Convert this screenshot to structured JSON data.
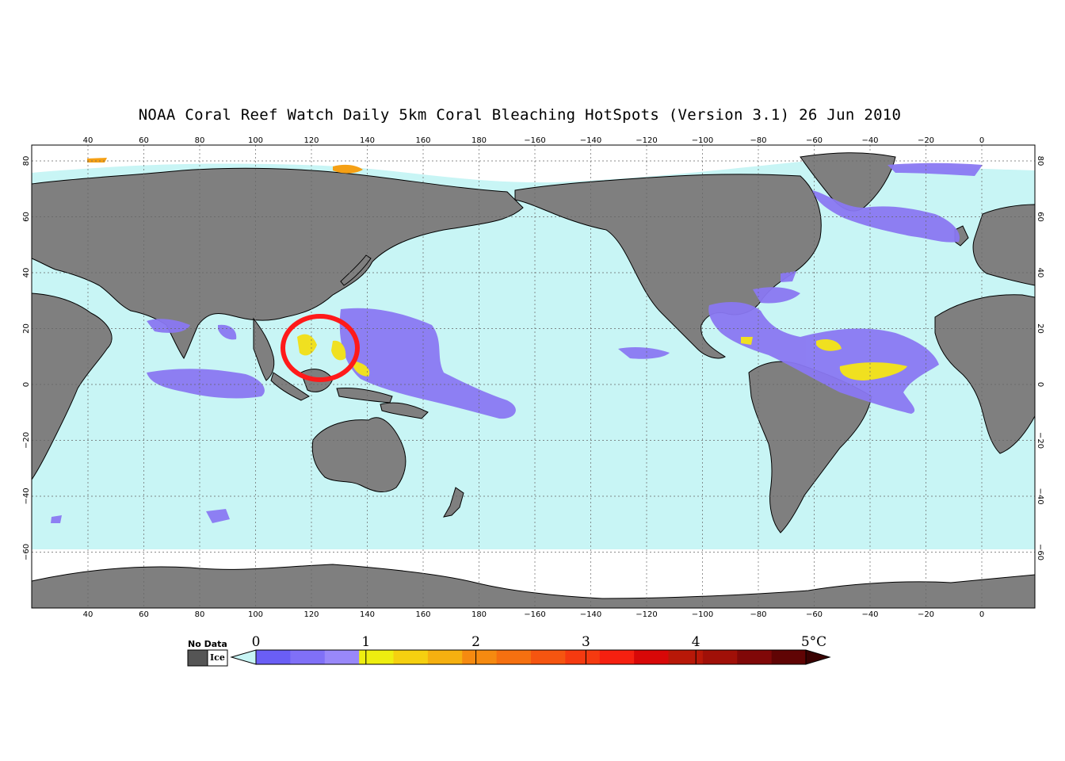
{
  "title": "NOAA Coral Reef Watch Daily 5km Coral Bleaching HotSpots (Version 3.1)  26 Jun 2010",
  "colors": {
    "ocean": "#c8f5f5",
    "land": "#7f7f7f",
    "ice": "#ffffff",
    "hotspot_low": "#8a78f2",
    "hotspot_high": "#f0e020",
    "highlight_circle": "#ff1a1a"
  },
  "map": {
    "lon_labels": [
      "40",
      "60",
      "80",
      "100",
      "120",
      "140",
      "160",
      "180",
      "−160",
      "−140",
      "−120",
      "−100",
      "−80",
      "−60",
      "−40",
      "−20",
      "0"
    ],
    "lat_labels": [
      "80",
      "60",
      "40",
      "20",
      "0",
      "−20",
      "−40",
      "−60"
    ]
  },
  "colorbar": {
    "no_data_label": "No Data",
    "ice_label": "Ice",
    "tick_labels": [
      "0",
      "1",
      "2",
      "3",
      "4",
      "5°C"
    ],
    "segment_colors": [
      "#6a5ef5",
      "#8070f7",
      "#9988f9",
      "#eeee10",
      "#f5d010",
      "#f5b010",
      "#f58a10",
      "#f57010",
      "#f55510",
      "#f53a10",
      "#f52010",
      "#d80808",
      "#b81808",
      "#a01008",
      "#800808",
      "#600404"
    ],
    "no_data_color": "#555555",
    "ice_color": "#ffffff",
    "below_arrow_color": "#c8f5f5",
    "above_arrow_color": "#3a0202"
  },
  "annotation": {
    "description_icon": "red-circle-highlight"
  }
}
